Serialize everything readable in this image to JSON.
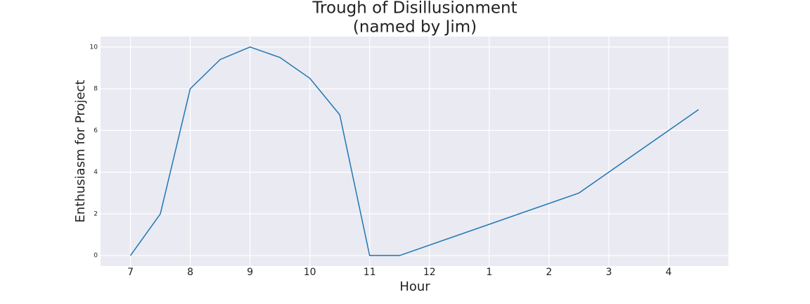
{
  "chart_data": {
    "type": "line",
    "title": "Trough of Disillusionment",
    "subtitle": "(named by Jim)",
    "x_label": "Hour",
    "y_label": "Enthusiasm for Project",
    "x": [
      7,
      7.5,
      8,
      8.5,
      9,
      9.5,
      10,
      10.5,
      11,
      11.5,
      14.5,
      16.5
    ],
    "series": [
      {
        "color": "#1f77b4",
        "values": [
          0,
          2,
          8,
          9.4,
          10,
          9.5,
          8.5,
          6.75,
          0,
          0,
          3,
          7
        ]
      }
    ],
    "xlim": [
      6.5,
      17
    ],
    "xticks": [
      7,
      8,
      9,
      10,
      11,
      12,
      {
        "value": 13,
        "label": "1"
      },
      {
        "value": 14,
        "label": "2"
      },
      {
        "value": 15,
        "label": "3"
      },
      {
        "value": 16,
        "label": "4"
      }
    ],
    "ylim": [
      -0.5,
      10.5
    ],
    "yticks": [
      0,
      2,
      4,
      6,
      8,
      10
    ],
    "grid": true
  }
}
